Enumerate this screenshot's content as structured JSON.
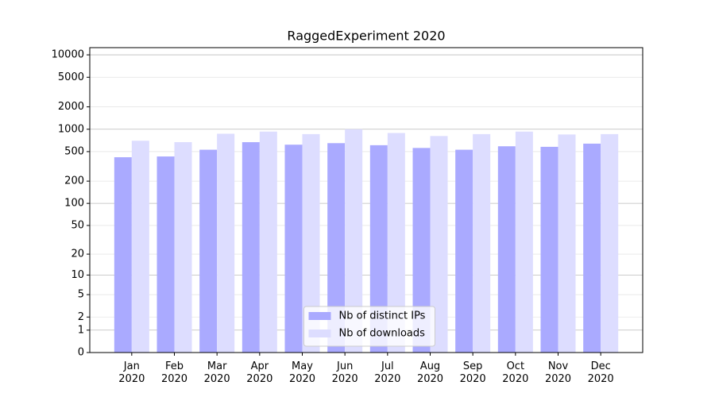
{
  "chart_data": {
    "type": "bar",
    "title": "RaggedExperiment 2020",
    "categories": [
      "Jan 2020",
      "Feb 2020",
      "Mar 2020",
      "Apr 2020",
      "May 2020",
      "Jun 2020",
      "Jul 2020",
      "Aug 2020",
      "Sep 2020",
      "Oct 2020",
      "Nov 2020",
      "Dec 2020"
    ],
    "series": [
      {
        "name": "Nb of distinct IPs",
        "color": "#aaaaff",
        "values": [
          420,
          430,
          530,
          670,
          620,
          650,
          610,
          560,
          530,
          590,
          580,
          640
        ]
      },
      {
        "name": "Nb of downloads",
        "color": "#ddddff",
        "values": [
          700,
          670,
          870,
          930,
          860,
          1000,
          890,
          810,
          860,
          930,
          850,
          860
        ]
      }
    ],
    "ylim": [
      0,
      12500
    ],
    "yticks": [
      0,
      1,
      2,
      5,
      10,
      20,
      50,
      100,
      200,
      500,
      1000,
      2000,
      5000,
      10000
    ],
    "scale": "log1p",
    "grid": true,
    "legend": "lower center"
  }
}
